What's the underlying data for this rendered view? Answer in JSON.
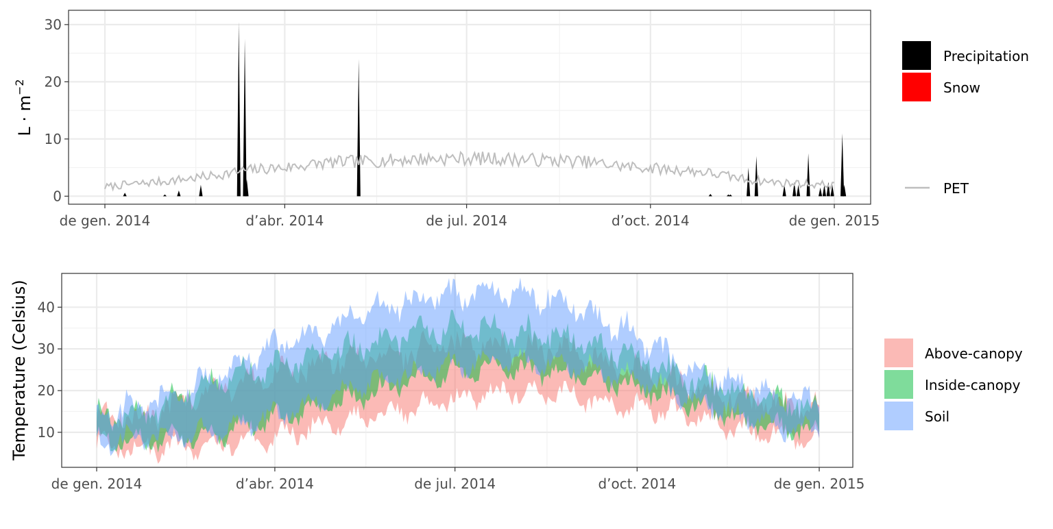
{
  "chart_data": [
    {
      "type": "area",
      "ylabel": "L · m⁻²",
      "ylabel_parts": {
        "base": "L · m",
        "exponent": "−2"
      },
      "y_ticks": [
        0,
        10,
        20,
        30
      ],
      "ylim": [
        -1.4,
        32.5
      ],
      "x_ticks": [
        "de gen. 2014",
        "d’abr. 2014",
        "de jul. 2014",
        "d’oct. 2014",
        "de gen. 2015"
      ],
      "grid": true,
      "legend_position": "right",
      "legend": [
        {
          "label": "Precipitation",
          "color": "#000000",
          "kind": "fill"
        },
        {
          "label": "Snow",
          "color": "#ff0000",
          "kind": "fill"
        },
        {
          "label": "PET",
          "color": "#bebebe",
          "kind": "line"
        }
      ],
      "precipitation_events": [
        {
          "day": 10,
          "value": 0.6
        },
        {
          "day": 30,
          "value": 0.3
        },
        {
          "day": 37,
          "value": 1.0
        },
        {
          "day": 48,
          "value": 2.0
        },
        {
          "day": 67,
          "value": 30.5
        },
        {
          "day": 70,
          "value": 27.5
        },
        {
          "day": 71,
          "value": 3.0
        },
        {
          "day": 127,
          "value": 24.0
        },
        {
          "day": 303,
          "value": 0.4
        },
        {
          "day": 312,
          "value": 0.3
        },
        {
          "day": 313,
          "value": 0.3
        },
        {
          "day": 322,
          "value": 5.0
        },
        {
          "day": 326,
          "value": 7.0
        },
        {
          "day": 340,
          "value": 2.0
        },
        {
          "day": 345,
          "value": 2.5
        },
        {
          "day": 347,
          "value": 2.0
        },
        {
          "day": 352,
          "value": 7.5
        },
        {
          "day": 358,
          "value": 1.5
        },
        {
          "day": 360,
          "value": 2.0
        },
        {
          "day": 362,
          "value": 2.5
        },
        {
          "day": 364,
          "value": 2.0
        },
        {
          "day": 369,
          "value": 11.0
        },
        {
          "day": 370,
          "value": 2.0
        }
      ],
      "pet_anchors": [
        [
          0,
          1.6
        ],
        [
          10,
          2.0
        ],
        [
          20,
          2.3
        ],
        [
          30,
          2.6
        ],
        [
          40,
          3.0
        ],
        [
          50,
          3.4
        ],
        [
          60,
          3.9
        ],
        [
          70,
          4.5
        ],
        [
          80,
          4.8
        ],
        [
          90,
          5.0
        ],
        [
          100,
          5.4
        ],
        [
          110,
          5.8
        ],
        [
          120,
          6.0
        ],
        [
          130,
          6.1
        ],
        [
          140,
          6.2
        ],
        [
          150,
          6.4
        ],
        [
          160,
          6.5
        ],
        [
          170,
          6.6
        ],
        [
          180,
          6.6
        ],
        [
          190,
          6.6
        ],
        [
          200,
          6.5
        ],
        [
          210,
          6.4
        ],
        [
          220,
          6.3
        ],
        [
          230,
          6.2
        ],
        [
          240,
          6.0
        ],
        [
          250,
          5.6
        ],
        [
          260,
          5.2
        ],
        [
          270,
          5.0
        ],
        [
          280,
          4.7
        ],
        [
          290,
          4.5
        ],
        [
          300,
          4.2
        ],
        [
          310,
          3.6
        ],
        [
          320,
          3.0
        ],
        [
          330,
          2.6
        ],
        [
          340,
          2.3
        ],
        [
          350,
          2.2
        ],
        [
          360,
          2.0
        ],
        [
          370,
          1.9
        ],
        [
          365,
          1.9
        ]
      ]
    },
    {
      "type": "area",
      "ylabel": "Temperature (Celsius)",
      "y_ticks": [
        10,
        20,
        30,
        40
      ],
      "ylim": [
        1.6,
        48.1
      ],
      "x_ticks": [
        "de gen. 2014",
        "d’abr. 2014",
        "de jul. 2014",
        "d’oct. 2014",
        "de gen. 2015"
      ],
      "grid": true,
      "legend_position": "right",
      "legend": [
        {
          "label": "Above-canopy",
          "color": "#f8766d"
        },
        {
          "label": "Inside-canopy",
          "color": "#00ba38"
        },
        {
          "label": "Soil",
          "color": "#619cff"
        }
      ],
      "series": [
        {
          "name": "Above-canopy",
          "color": "#f8766d",
          "min_anchors": [
            [
              0,
              7
            ],
            [
              30,
              6
            ],
            [
              60,
              7
            ],
            [
              90,
              9
            ],
            [
              120,
              12
            ],
            [
              150,
              15
            ],
            [
              180,
              18
            ],
            [
              210,
              20
            ],
            [
              240,
              19
            ],
            [
              270,
              16
            ],
            [
              300,
              14
            ],
            [
              330,
              10
            ],
            [
              350,
              9
            ],
            [
              365,
              8
            ]
          ],
          "max_anchors": [
            [
              0,
              13
            ],
            [
              30,
              14
            ],
            [
              60,
              20
            ],
            [
              90,
              23
            ],
            [
              120,
              27
            ],
            [
              150,
              28
            ],
            [
              180,
              31
            ],
            [
              210,
              30
            ],
            [
              240,
              29
            ],
            [
              270,
              25
            ],
            [
              300,
              20
            ],
            [
              330,
              17
            ],
            [
              350,
              16
            ],
            [
              365,
              15
            ]
          ]
        },
        {
          "name": "Inside-canopy",
          "color": "#00ba38",
          "min_anchors": [
            [
              0,
              8
            ],
            [
              30,
              8
            ],
            [
              60,
              9
            ],
            [
              90,
              13
            ],
            [
              120,
              17
            ],
            [
              150,
              21
            ],
            [
              180,
              24
            ],
            [
              210,
              25
            ],
            [
              240,
              24
            ],
            [
              270,
              21
            ],
            [
              300,
              17
            ],
            [
              330,
              12
            ],
            [
              350,
              11
            ],
            [
              365,
              10
            ]
          ],
          "max_anchors": [
            [
              0,
              13
            ],
            [
              30,
              15
            ],
            [
              60,
              21
            ],
            [
              90,
              25
            ],
            [
              120,
              29
            ],
            [
              150,
              32
            ],
            [
              180,
              34
            ],
            [
              210,
              33
            ],
            [
              240,
              32
            ],
            [
              270,
              28
            ],
            [
              300,
              22
            ],
            [
              330,
              18
            ],
            [
              350,
              17
            ],
            [
              365,
              15
            ]
          ]
        },
        {
          "name": "Soil",
          "color": "#619cff",
          "min_anchors": [
            [
              0,
              8
            ],
            [
              30,
              9
            ],
            [
              60,
              10
            ],
            [
              90,
              14
            ],
            [
              120,
              19
            ],
            [
              150,
              23
            ],
            [
              180,
              26
            ],
            [
              210,
              27
            ],
            [
              240,
              26
            ],
            [
              270,
              23
            ],
            [
              300,
              18
            ],
            [
              330,
              13
            ],
            [
              350,
              11
            ],
            [
              365,
              10
            ]
          ],
          "max_anchors": [
            [
              0,
              14
            ],
            [
              30,
              17
            ],
            [
              60,
              23
            ],
            [
              90,
              30
            ],
            [
              120,
              35
            ],
            [
              150,
              40
            ],
            [
              180,
              43
            ],
            [
              210,
              43
            ],
            [
              240,
              40
            ],
            [
              270,
              33
            ],
            [
              300,
              25
            ],
            [
              330,
              20
            ],
            [
              350,
              18
            ],
            [
              365,
              16
            ]
          ]
        }
      ]
    }
  ]
}
